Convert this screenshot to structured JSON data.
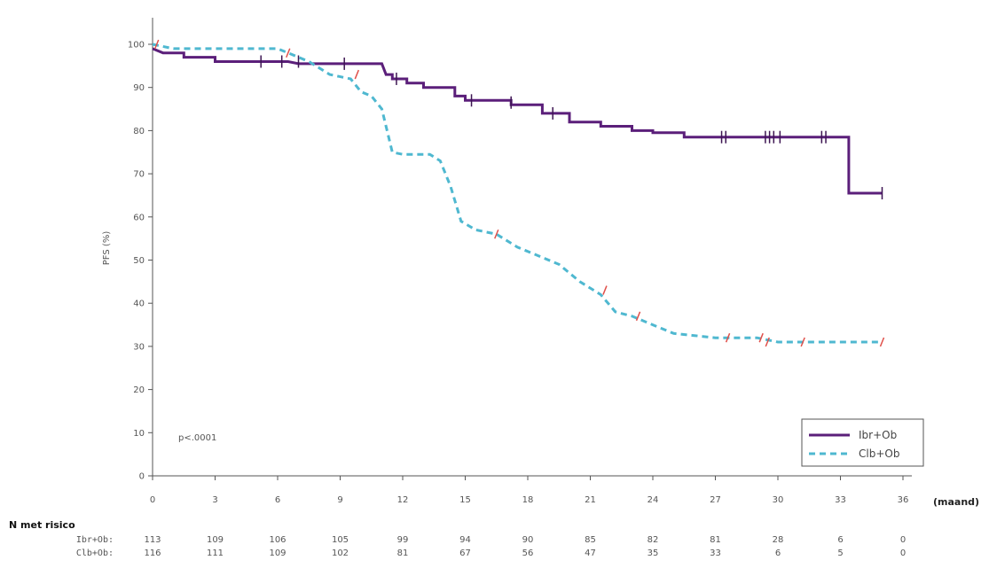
{
  "chart_data": {
    "type": "line",
    "title": "",
    "xlabel": "(maand)",
    "ylabel": "PFS (%)",
    "xlim": [
      0,
      36
    ],
    "ylim": [
      0,
      105
    ],
    "x_ticks": [
      "0",
      "3",
      "6",
      "9",
      "12",
      "15",
      "18",
      "21",
      "24",
      "27",
      "30",
      "33",
      "36"
    ],
    "y_ticks": [
      "0",
      "10",
      "20",
      "30",
      "40",
      "50",
      "60",
      "70",
      "80",
      "90",
      "100"
    ],
    "grid": false,
    "legend_position": "bottom-right",
    "annotation": "p<.0001",
    "series": [
      {
        "name": "Ibr+Ob",
        "style": "solid",
        "color": "#5b1f7a",
        "points": [
          [
            0,
            99
          ],
          [
            0.5,
            98
          ],
          [
            1.5,
            98
          ],
          [
            1.5,
            97
          ],
          [
            3,
            97
          ],
          [
            3,
            96
          ],
          [
            6.5,
            96
          ],
          [
            7,
            95.5
          ],
          [
            11,
            95.5
          ],
          [
            11.2,
            93
          ],
          [
            11.5,
            93
          ],
          [
            11.5,
            92
          ],
          [
            12.2,
            92
          ],
          [
            12.2,
            91
          ],
          [
            13,
            91
          ],
          [
            13,
            90
          ],
          [
            14.5,
            90
          ],
          [
            14.5,
            88
          ],
          [
            15,
            88
          ],
          [
            15,
            87
          ],
          [
            17.2,
            87
          ],
          [
            17.2,
            86
          ],
          [
            18.7,
            86
          ],
          [
            18.7,
            84
          ],
          [
            20,
            84
          ],
          [
            20,
            82
          ],
          [
            21.5,
            82
          ],
          [
            21.5,
            81
          ],
          [
            23,
            81
          ],
          [
            23,
            80
          ],
          [
            24,
            80
          ],
          [
            24,
            79.5
          ],
          [
            25.5,
            79.5
          ],
          [
            25.5,
            78.5
          ],
          [
            33.4,
            78.5
          ],
          [
            33.4,
            65.5
          ],
          [
            35,
            65.5
          ]
        ],
        "censor_marks": [
          [
            5.2,
            96
          ],
          [
            6.2,
            96
          ],
          [
            7.0,
            96
          ],
          [
            9.2,
            95.5
          ],
          [
            11.7,
            92
          ],
          [
            15.3,
            87
          ],
          [
            17.2,
            86.5
          ],
          [
            19.2,
            84
          ],
          [
            27.3,
            78.5
          ],
          [
            27.5,
            78.5
          ],
          [
            29.4,
            78.5
          ],
          [
            29.6,
            78.5
          ],
          [
            29.8,
            78.5
          ],
          [
            30.1,
            78.5
          ],
          [
            32.1,
            78.5
          ],
          [
            32.3,
            78.5
          ],
          [
            35,
            65.5
          ]
        ]
      },
      {
        "name": "Clb+Ob",
        "style": "dashed",
        "color": "#4fb8d0",
        "points": [
          [
            0,
            100
          ],
          [
            1,
            99
          ],
          [
            6,
            99
          ],
          [
            6.5,
            98
          ],
          [
            7.5,
            96
          ],
          [
            8.5,
            93
          ],
          [
            9.5,
            92
          ],
          [
            10,
            89
          ],
          [
            10.5,
            88
          ],
          [
            11,
            85
          ],
          [
            11.5,
            75
          ],
          [
            12,
            74.5
          ],
          [
            13.3,
            74.5
          ],
          [
            13.8,
            73
          ],
          [
            14.3,
            67
          ],
          [
            14.8,
            59
          ],
          [
            15.5,
            57
          ],
          [
            16.5,
            56
          ],
          [
            17.5,
            53
          ],
          [
            18.5,
            51
          ],
          [
            19.5,
            49
          ],
          [
            20.5,
            45
          ],
          [
            21.5,
            42
          ],
          [
            22.2,
            38
          ],
          [
            23,
            37
          ],
          [
            24,
            35
          ],
          [
            25,
            33
          ],
          [
            26,
            32.5
          ],
          [
            27,
            32
          ],
          [
            28,
            32
          ],
          [
            29,
            32
          ],
          [
            30,
            31
          ],
          [
            31,
            31
          ],
          [
            33,
            31
          ],
          [
            35,
            31
          ]
        ],
        "censor_marks": [
          [
            0.2,
            100
          ],
          [
            6.5,
            98
          ],
          [
            9.8,
            93
          ],
          [
            16.5,
            56
          ],
          [
            21.7,
            43
          ],
          [
            23.3,
            37
          ],
          [
            27.6,
            32
          ],
          [
            29.2,
            32
          ],
          [
            29.5,
            31
          ],
          [
            31.2,
            31
          ],
          [
            35,
            31
          ]
        ]
      }
    ]
  },
  "risk_table": {
    "title": "N met risico",
    "rows": [
      {
        "label": "Ibr+Ob:",
        "values": [
          "113",
          "109",
          "106",
          "105",
          "99",
          "94",
          "90",
          "85",
          "82",
          "81",
          "28",
          "6",
          "0"
        ]
      },
      {
        "label": "Clb+Ob:",
        "values": [
          "116",
          "111",
          "109",
          "102",
          "81",
          "67",
          "56",
          "47",
          "35",
          "33",
          "6",
          "5",
          "0"
        ]
      }
    ]
  }
}
